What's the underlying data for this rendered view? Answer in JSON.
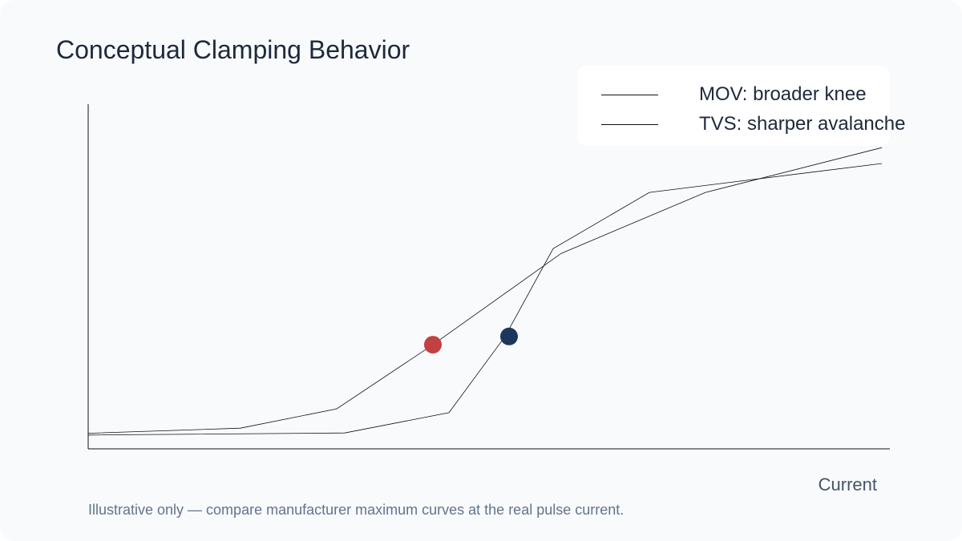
{
  "chart_data": {
    "type": "line",
    "title": "Conceptual Clamping Behavior",
    "xlabel": "Current",
    "ylabel": "",
    "xlim": [
      0,
      100
    ],
    "ylim": [
      0,
      100
    ],
    "grid": false,
    "legend_position": "top-right",
    "series": [
      {
        "name": "MOV: broader knee",
        "color": "#111111",
        "x": [
          0,
          19,
          31,
          43,
          59,
          77,
          99
        ],
        "y": [
          4.5,
          6,
          11.6,
          30.2,
          56.7,
          74.4,
          87.4
        ]
      },
      {
        "name": "TVS: sharper avalanche",
        "color": "#111111",
        "x": [
          0,
          32,
          45,
          52,
          58,
          70,
          99
        ],
        "y": [
          4,
          4.6,
          10.5,
          32.6,
          58.1,
          74.4,
          82.8
        ]
      }
    ],
    "markers": [
      {
        "series": 0,
        "x": 43,
        "y": 30.2,
        "color": "#c0413f"
      },
      {
        "series": 1,
        "x": 52.5,
        "y": 32.6,
        "color": "#1e365e"
      }
    ],
    "footnote": "Illustrative only — compare manufacturer maximum curves at the real pulse current."
  }
}
